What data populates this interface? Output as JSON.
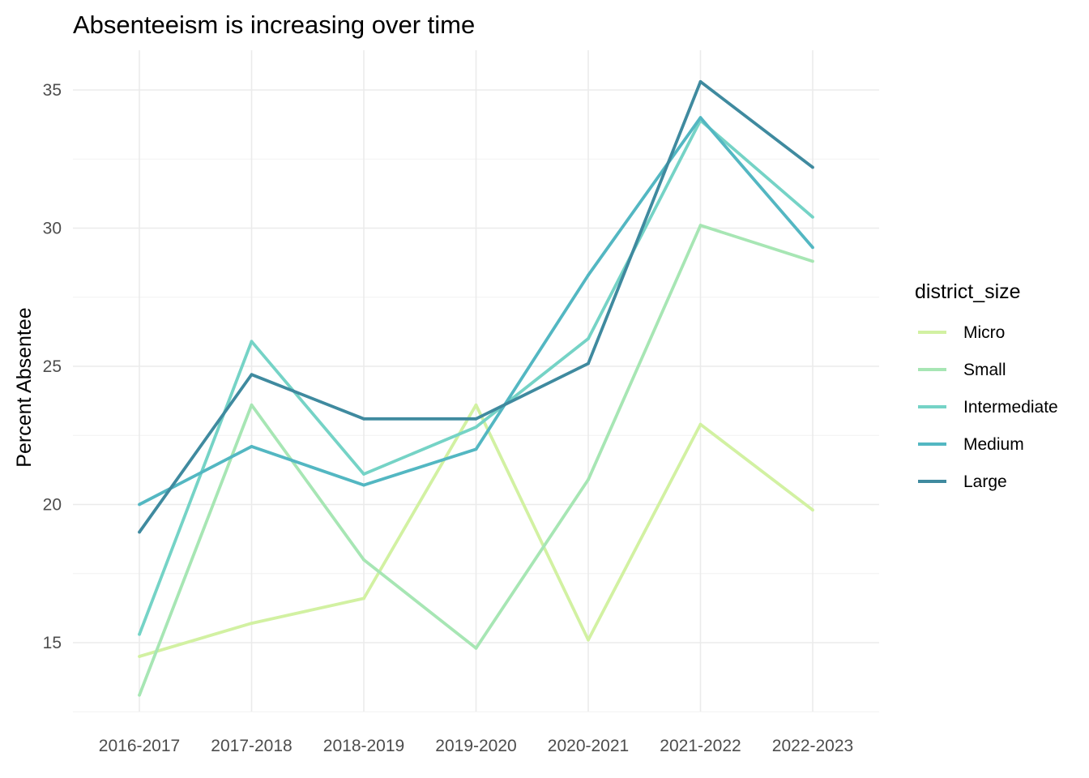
{
  "chart_data": {
    "type": "line",
    "title": "Absenteeism is increasing over time",
    "xlabel": "",
    "ylabel": "Percent Absentee",
    "categories": [
      "2016-2017",
      "2017-2018",
      "2018-2019",
      "2019-2020",
      "2020-2021",
      "2021-2022",
      "2022-2023"
    ],
    "ylim": [
      12.5,
      36.5
    ],
    "yticks": [
      15,
      20,
      25,
      30,
      35
    ],
    "grid": true,
    "legend": {
      "title": "district_size",
      "placement": "right"
    },
    "series": [
      {
        "name": "Micro",
        "color": "#d2f1a2",
        "values": [
          14.5,
          15.7,
          16.6,
          23.6,
          15.1,
          22.9,
          19.8
        ]
      },
      {
        "name": "Small",
        "color": "#a7e6b4",
        "values": [
          13.1,
          23.6,
          18.0,
          14.8,
          20.9,
          30.1,
          28.8
        ]
      },
      {
        "name": "Intermediate",
        "color": "#75d3c6",
        "values": [
          15.3,
          25.9,
          21.1,
          22.8,
          26.0,
          33.9,
          30.4
        ]
      },
      {
        "name": "Medium",
        "color": "#53b7c2",
        "values": [
          20.0,
          22.1,
          20.7,
          22.0,
          28.3,
          34.0,
          29.3
        ]
      },
      {
        "name": "Large",
        "color": "#3f8a9f",
        "values": [
          19.0,
          24.7,
          23.1,
          23.1,
          25.1,
          35.3,
          32.2
        ]
      }
    ]
  }
}
